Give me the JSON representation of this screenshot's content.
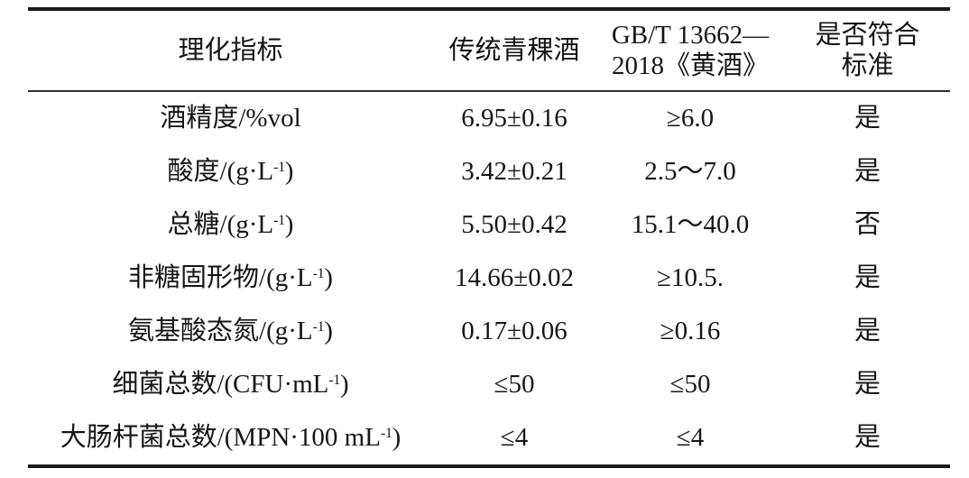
{
  "table": {
    "title_semantic": "理化指标检测结果对照表",
    "header": [
      "理化指标",
      "传统青稞酒",
      "GB/T 13662—\n2018《黄酒》",
      "是否符合\n标准"
    ],
    "rows": [
      {
        "indicator": {
          "base": "酒精度/%vol",
          "sup": "",
          "tail": ""
        },
        "sample": "6.95±0.16",
        "standard": "≥6.0",
        "conform": "是"
      },
      {
        "indicator": {
          "base": "酸度/(g·L",
          "sup": "-1",
          "tail": ")"
        },
        "sample": "3.42±0.21",
        "standard": "2.5～7.0",
        "conform": "是"
      },
      {
        "indicator": {
          "base": "总糖/(g·L",
          "sup": "-1",
          "tail": ")"
        },
        "sample": "5.50±0.42",
        "standard": "15.1～40.0",
        "conform": "否"
      },
      {
        "indicator": {
          "base": "非糖固形物/(g·L",
          "sup": "-1",
          "tail": ")"
        },
        "sample": "14.66±0.02",
        "standard": "≥10.5.",
        "conform": "是"
      },
      {
        "indicator": {
          "base": "氨基酸态氮/(g·L",
          "sup": "-1",
          "tail": ")"
        },
        "sample": "0.17±0.06",
        "standard": "≥0.16",
        "conform": "是"
      },
      {
        "indicator": {
          "base": "细菌总数/(CFU·mL",
          "sup": "-1",
          "tail": ")"
        },
        "sample": "≤50",
        "standard": "≤50",
        "conform": "是"
      },
      {
        "indicator": {
          "base": "大肠杆菌总数/(MPN·100 mL",
          "sup": "-1",
          "tail": ")"
        },
        "sample": "≤4",
        "standard": "≤4",
        "conform": "是"
      }
    ],
    "colors": {
      "text": "#161616",
      "rule": "#1a1a1a",
      "background": "#ffffff"
    }
  }
}
